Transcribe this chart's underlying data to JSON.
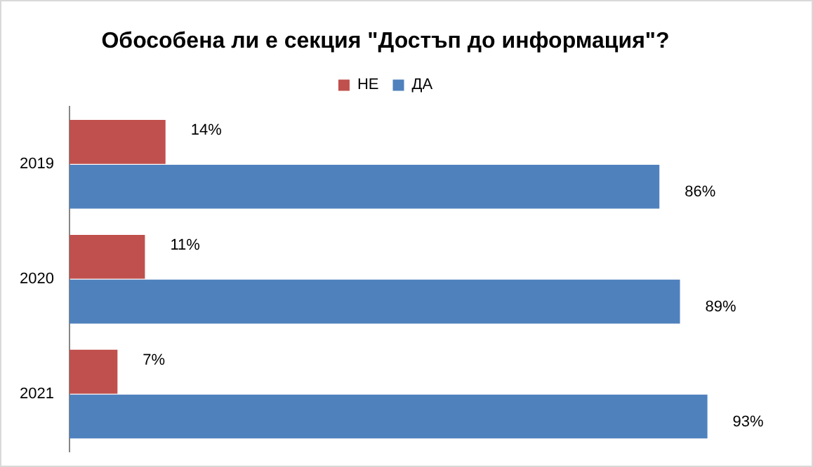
{
  "chart_data": {
    "type": "bar",
    "orientation": "horizontal",
    "title": "Обособена ли е секция \"Достъп до информация\"?",
    "categories": [
      "2019",
      "2020",
      "2021"
    ],
    "series": [
      {
        "name": "НЕ",
        "color": "#c0504d",
        "values": [
          14,
          11,
          7
        ],
        "value_labels": [
          "14%",
          "11%",
          "7%"
        ]
      },
      {
        "name": "ДА",
        "color": "#4f81bd",
        "values": [
          86,
          89,
          93
        ],
        "value_labels": [
          "86%",
          "89%",
          "93%"
        ]
      }
    ],
    "legend": "top",
    "grid": false,
    "tick_labels": "y"
  }
}
